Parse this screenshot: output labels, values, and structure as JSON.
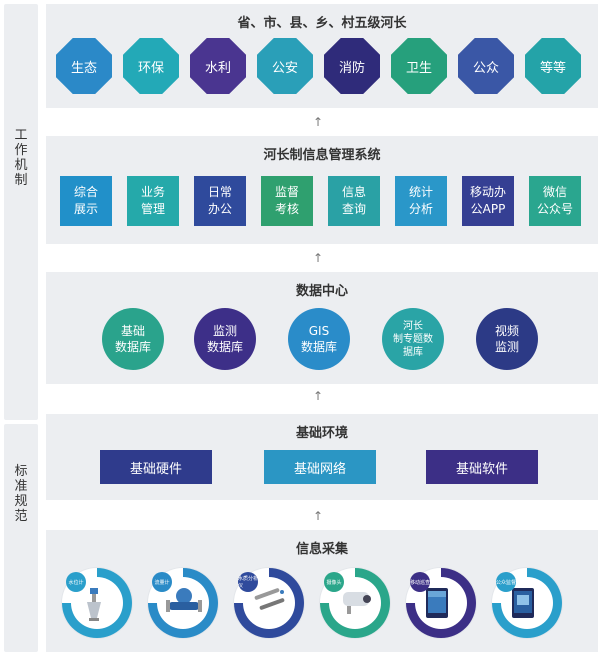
{
  "sidebar": {
    "mechanism": "工作机制",
    "standards": "标准规范"
  },
  "admin_levels": {
    "title": "省、市、县、乡、村五级河长",
    "items": [
      {
        "label": "生态",
        "color": "#2b89c8"
      },
      {
        "label": "环保",
        "color": "#23a9b7"
      },
      {
        "label": "水利",
        "color": "#4a3590"
      },
      {
        "label": "公安",
        "color": "#2a9fb8"
      },
      {
        "label": "消防",
        "color": "#2f2b7a"
      },
      {
        "label": "卫生",
        "color": "#26a07c"
      },
      {
        "label": "公众",
        "color": "#3a57a6"
      },
      {
        "label": "等等",
        "color": "#24a3a8"
      }
    ]
  },
  "management": {
    "title": "河长制信息管理系统",
    "items": [
      {
        "label": "综合\n展示",
        "color": "#2190c9"
      },
      {
        "label": "业务\n管理",
        "color": "#25a9aa"
      },
      {
        "label": "日常\n办公",
        "color": "#2f4a9c"
      },
      {
        "label": "监督\n考核",
        "color": "#2fa06f"
      },
      {
        "label": "信息\n查询",
        "color": "#2aa1a5"
      },
      {
        "label": "统计\n分析",
        "color": "#2a97c9"
      },
      {
        "label": "移动办\n公APP",
        "color": "#353f93"
      },
      {
        "label": "微信\n公众号",
        "color": "#2aa68f"
      }
    ]
  },
  "data_center": {
    "title": "数据中心",
    "items": [
      {
        "label": "基础\n数据库",
        "color": "#2aa38c"
      },
      {
        "label": "监测\n数据库",
        "color": "#3d2f88"
      },
      {
        "label": "GIS\n数据库",
        "color": "#2a8cc9"
      },
      {
        "label": "河长\n制专题数\n据库",
        "color": "#2aa4a6"
      },
      {
        "label": "视频\n监测",
        "color": "#2c3a86"
      }
    ]
  },
  "environment": {
    "title": "基础环境",
    "items": [
      {
        "label": "基础硬件",
        "color": "#2f3b8c"
      },
      {
        "label": "基础网络",
        "color": "#2b96c4"
      },
      {
        "label": "基础软件",
        "color": "#3c2f86"
      }
    ]
  },
  "collection": {
    "title": "信息采集",
    "items": [
      {
        "label": "水位计",
        "color": "#2a9fcb"
      },
      {
        "label": "流量计",
        "color": "#2a8bc7"
      },
      {
        "label": "水质分析仪",
        "color": "#2f4a9c"
      },
      {
        "label": "摄像头",
        "color": "#2aa68a"
      },
      {
        "label": "移动巡查",
        "color": "#3c2f86"
      },
      {
        "label": "公众监督",
        "color": "#2a9fcb"
      }
    ]
  },
  "arrow": "↑"
}
